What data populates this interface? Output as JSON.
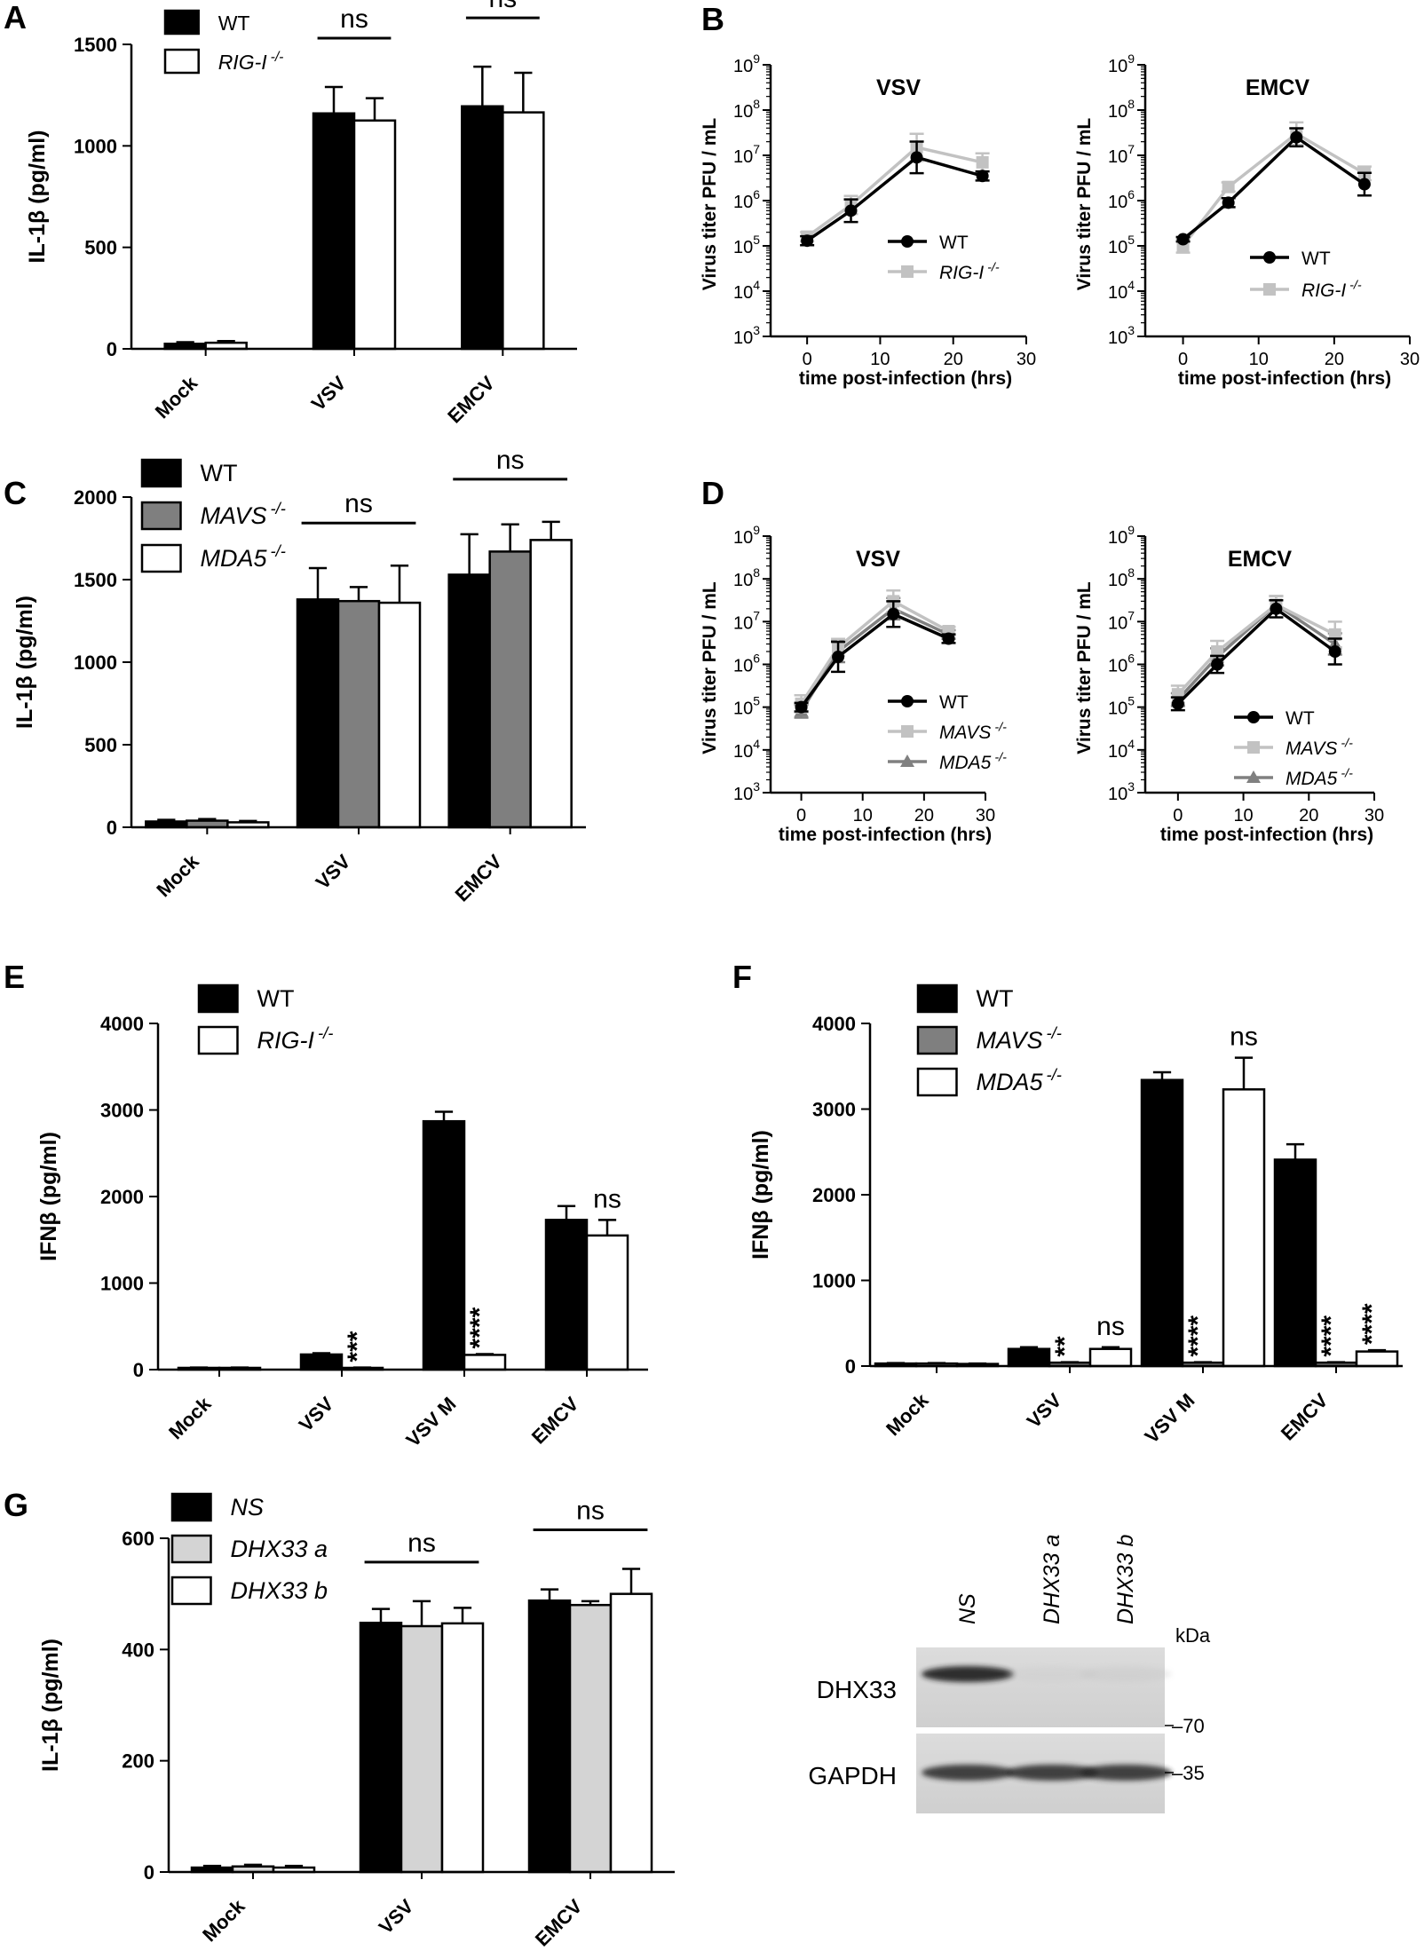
{
  "colors": {
    "black": "#000000",
    "white": "#ffffff",
    "dark_gray": "#7f7f7f",
    "light_gray": "#d4d4d4",
    "line_gray": "#c2c2c2",
    "line_dark_gray": "#808080"
  },
  "chart_data": [
    {
      "id": "A",
      "type": "bar",
      "panel_label": "A",
      "ylabel": "IL-1β (pg/ml)",
      "xlabel": "",
      "ylim": [
        0,
        1500
      ],
      "yticks": [
        "0",
        "500",
        "1000",
        "1500"
      ],
      "categories": [
        "Mock",
        "VSV",
        "EMCV"
      ],
      "series": [
        {
          "name": "WT",
          "fill": "#000000",
          "values": [
            25,
            1160,
            1195
          ],
          "errors": [
            8,
            130,
            195
          ]
        },
        {
          "name": "RIG-I",
          "sup": "-/-",
          "italic": true,
          "fill": "#ffffff",
          "values": [
            30,
            1125,
            1165
          ],
          "errors": [
            8,
            110,
            195
          ]
        }
      ],
      "annotations": [
        {
          "text": "ns",
          "category": 1
        },
        {
          "text": "ns",
          "category": 2
        }
      ]
    },
    {
      "id": "B1",
      "type": "line",
      "panel_label": "B",
      "title": "VSV",
      "ylabel": "Virus titer PFU / mL",
      "xlabel": "time post-infection (hrs)",
      "yscale": "log",
      "ylim_exp": [
        3,
        9
      ],
      "xlim": [
        -5,
        30
      ],
      "xticks": [
        "0",
        "10",
        "20",
        "30"
      ],
      "series": [
        {
          "name": "WT",
          "color": "#000000",
          "marker": "circle",
          "x": [
            0,
            6,
            15,
            24
          ],
          "y": [
            130000,
            600000,
            9000000,
            3500000
          ],
          "err_exp": [
            0.1,
            0.25,
            0.35,
            0.1
          ]
        },
        {
          "name": "RIG-I",
          "sup": "-/-",
          "italic": true,
          "color": "#c2c2c2",
          "marker": "square",
          "x": [
            0,
            6,
            15,
            24
          ],
          "y": [
            160000,
            800000,
            15000000,
            7000000
          ],
          "err_exp": [
            0.1,
            0.2,
            0.3,
            0.2
          ]
        }
      ]
    },
    {
      "id": "B2",
      "type": "line",
      "panel_label": "",
      "title": "EMCV",
      "ylabel": "Virus titer PFU / mL",
      "xlabel": "time post-infection (hrs)",
      "yscale": "log",
      "ylim_exp": [
        3,
        9
      ],
      "xlim": [
        -5,
        30
      ],
      "xticks": [
        "0",
        "10",
        "20",
        "30"
      ],
      "series": [
        {
          "name": "WT",
          "color": "#000000",
          "marker": "circle",
          "x": [
            0,
            6,
            15,
            24
          ],
          "y": [
            140000,
            900000,
            25000000,
            2300000
          ],
          "err_exp": [
            0.05,
            0.1,
            0.2,
            0.25
          ]
        },
        {
          "name": "RIG-I",
          "sup": "-/-",
          "italic": true,
          "color": "#c2c2c2",
          "marker": "square",
          "x": [
            0,
            6,
            15,
            24
          ],
          "y": [
            100000,
            2000000,
            30000000,
            4000000
          ],
          "err_exp": [
            0.15,
            0.1,
            0.25,
            0.15
          ]
        }
      ]
    },
    {
      "id": "C",
      "type": "bar",
      "panel_label": "C",
      "ylabel": "IL-1β (pg/ml)",
      "xlabel": "",
      "ylim": [
        0,
        2000
      ],
      "yticks": [
        "0",
        "500",
        "1000",
        "1500",
        "2000"
      ],
      "categories": [
        "Mock",
        "VSV",
        "EMCV"
      ],
      "series": [
        {
          "name": "WT",
          "fill": "#000000",
          "values": [
            35,
            1380,
            1530
          ],
          "errors": [
            10,
            190,
            245
          ]
        },
        {
          "name": "MAVS",
          "sup": "-/-",
          "italic": true,
          "fill": "#7f7f7f",
          "values": [
            40,
            1370,
            1670
          ],
          "errors": [
            10,
            85,
            165
          ]
        },
        {
          "name": "MDA5",
          "sup": "-/-",
          "italic": true,
          "fill": "#ffffff",
          "values": [
            30,
            1360,
            1740
          ],
          "errors": [
            8,
            225,
            110
          ]
        }
      ],
      "annotations": [
        {
          "text": "ns",
          "category": 1
        },
        {
          "text": "ns",
          "category": 2
        }
      ]
    },
    {
      "id": "D1",
      "type": "line",
      "panel_label": "D",
      "title": "VSV",
      "ylabel": "Virus titer PFU / mL",
      "xlabel": "time post-infection (hrs)",
      "yscale": "log",
      "ylim_exp": [
        3,
        9
      ],
      "xlim": [
        -5,
        30
      ],
      "xticks": [
        "0",
        "10",
        "20",
        "30"
      ],
      "series": [
        {
          "name": "WT",
          "color": "#000000",
          "marker": "circle",
          "x": [
            0,
            6,
            15,
            24
          ],
          "y": [
            100000,
            1500000,
            15000000,
            4000000
          ],
          "err_exp": [
            0.1,
            0.35,
            0.3,
            0.1
          ]
        },
        {
          "name": "MAVS",
          "sup": "-/-",
          "italic": true,
          "color": "#c2c2c2",
          "marker": "square",
          "x": [
            0,
            6,
            15,
            24
          ],
          "y": [
            120000,
            2500000,
            30000000,
            6000000
          ],
          "err_exp": [
            0.2,
            0.2,
            0.25,
            0.1
          ]
        },
        {
          "name": "MDA5",
          "sup": "-/-",
          "italic": true,
          "color": "#808080",
          "marker": "triangle",
          "x": [
            0,
            6,
            15,
            24
          ],
          "y": [
            80000,
            2000000,
            20000000,
            5000000
          ],
          "err_exp": [
            0.15,
            0.25,
            0.25,
            0.1
          ]
        }
      ]
    },
    {
      "id": "D2",
      "type": "line",
      "panel_label": "",
      "title": "EMCV",
      "ylabel": "Virus titer PFU / mL",
      "xlabel": "time post-infection (hrs)",
      "yscale": "log",
      "ylim_exp": [
        3,
        9
      ],
      "xlim": [
        -5,
        30
      ],
      "xticks": [
        "0",
        "10",
        "20",
        "30"
      ],
      "series": [
        {
          "name": "WT",
          "color": "#000000",
          "marker": "circle",
          "x": [
            0,
            6,
            15,
            24
          ],
          "y": [
            120000,
            1000000,
            20000000,
            2000000
          ],
          "err_exp": [
            0.15,
            0.2,
            0.2,
            0.3
          ]
        },
        {
          "name": "MAVS",
          "sup": "-/-",
          "italic": true,
          "color": "#c2c2c2",
          "marker": "square",
          "x": [
            0,
            6,
            15,
            24
          ],
          "y": [
            200000,
            2000000,
            25000000,
            5000000
          ],
          "err_exp": [
            0.2,
            0.25,
            0.2,
            0.3
          ]
        },
        {
          "name": "MDA5",
          "sup": "-/-",
          "italic": true,
          "color": "#808080",
          "marker": "triangle",
          "x": [
            0,
            6,
            15,
            24
          ],
          "y": [
            150000,
            1500000,
            25000000,
            3000000
          ],
          "err_exp": [
            0.15,
            0.2,
            0.2,
            0.25
          ]
        }
      ]
    },
    {
      "id": "E",
      "type": "bar",
      "panel_label": "E",
      "ylabel": "IFNβ (pg/ml)",
      "xlabel": "",
      "ylim": [
        0,
        4000
      ],
      "yticks": [
        "0",
        "1000",
        "2000",
        "3000",
        "4000"
      ],
      "categories": [
        "Mock",
        "VSV",
        "VSV M",
        "EMCV"
      ],
      "series": [
        {
          "name": "WT",
          "fill": "#000000",
          "values": [
            20,
            175,
            2870,
            1730
          ],
          "errors": [
            5,
            15,
            110,
            160
          ]
        },
        {
          "name": "RIG-I",
          "sup": "-/-",
          "italic": true,
          "fill": "#ffffff",
          "values": [
            20,
            20,
            170,
            1550
          ],
          "errors": [
            5,
            5,
            10,
            180
          ]
        }
      ],
      "annotations": [
        {
          "text": "***",
          "category": 1,
          "series": 1
        },
        {
          "text": "****",
          "category": 2,
          "series": 1
        },
        {
          "text": "ns",
          "category": 3,
          "series": 1
        }
      ]
    },
    {
      "id": "F",
      "type": "bar",
      "panel_label": "F",
      "ylabel": "IFNβ (pg/ml)",
      "xlabel": "",
      "ylim": [
        0,
        4000
      ],
      "yticks": [
        "0",
        "1000",
        "2000",
        "3000",
        "4000"
      ],
      "categories": [
        "Mock",
        "VSV",
        "VSV M",
        "EMCV"
      ],
      "series": [
        {
          "name": "WT",
          "fill": "#000000",
          "values": [
            30,
            200,
            3340,
            2410
          ],
          "errors": [
            5,
            20,
            90,
            180
          ]
        },
        {
          "name": "MAVS",
          "sup": "-/-",
          "italic": true,
          "fill": "#7f7f7f",
          "values": [
            30,
            40,
            40,
            40
          ],
          "errors": [
            5,
            5,
            5,
            5
          ]
        },
        {
          "name": "MDA5",
          "sup": "-/-",
          "italic": true,
          "fill": "#ffffff",
          "values": [
            25,
            200,
            3230,
            170
          ],
          "errors": [
            5,
            20,
            370,
            15
          ]
        }
      ],
      "annotations": [
        {
          "text": "**",
          "category": 1,
          "series": 1
        },
        {
          "text": "ns",
          "category": 1,
          "series": 2
        },
        {
          "text": "****",
          "category": 2,
          "series": 1
        },
        {
          "text": "ns",
          "category": 2,
          "series": 2
        },
        {
          "text": "****",
          "category": 3,
          "series": 1
        },
        {
          "text": "****",
          "category": 3,
          "series": 2
        }
      ]
    },
    {
      "id": "G",
      "type": "bar",
      "panel_label": "G",
      "ylabel": "IL-1β (pg/ml)",
      "xlabel": "",
      "ylim": [
        0,
        600
      ],
      "yticks": [
        "0",
        "200",
        "400",
        "600"
      ],
      "categories": [
        "Mock",
        "VSV",
        "EMCV"
      ],
      "series": [
        {
          "name": "NS",
          "italic": true,
          "fill": "#000000",
          "values": [
            8,
            448,
            488
          ],
          "errors": [
            3,
            25,
            20
          ]
        },
        {
          "name": "DHX33 a",
          "italic": true,
          "fill": "#d4d4d4",
          "values": [
            10,
            442,
            480
          ],
          "errors": [
            3,
            45,
            7
          ]
        },
        {
          "name": "DHX33 b",
          "italic": true,
          "fill": "#ffffff",
          "values": [
            8,
            447,
            500
          ],
          "errors": [
            3,
            28,
            45
          ]
        }
      ],
      "annotations": [
        {
          "text": "ns",
          "category": 1
        },
        {
          "text": "ns",
          "category": 2
        }
      ]
    }
  ],
  "western_blot": {
    "lane_labels": [
      "NS",
      "DHX33 a",
      "DHX33 b"
    ],
    "units_label": "kDa",
    "rows": [
      {
        "label": "DHX33",
        "marker": "70",
        "band_intensity": [
          0.9,
          0.06,
          0.1
        ]
      },
      {
        "label": "GAPDH",
        "marker": "35",
        "band_intensity": [
          0.85,
          0.85,
          0.85
        ]
      }
    ]
  }
}
